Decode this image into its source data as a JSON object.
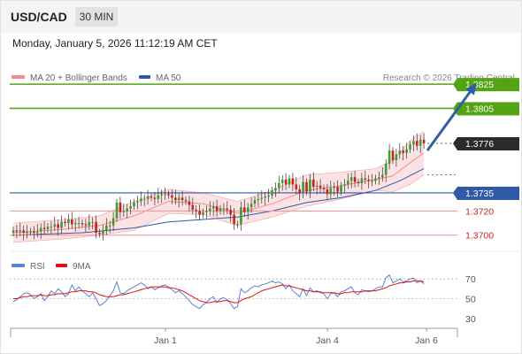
{
  "header": {
    "symbol": "USD/CAD",
    "timeframe": "30 MIN"
  },
  "datetime": "Monday, January 5, 2026 11:12:19 AM CET",
  "legend": [
    {
      "label": "MA 20 + Bollinger Bands",
      "color": "#f28b8b"
    },
    {
      "label": "MA 50",
      "color": "#2e5aa8"
    }
  ],
  "credit": "Research © 2026 Trading Central",
  "colors": {
    "bull": "#3f9c2f",
    "bear": "#cc1f1f",
    "resistance": "#53a313",
    "pivot": "#2e5aa8",
    "support": "#f29b9b",
    "band_fill": "#fbdada",
    "arrow": "#2f5fa6",
    "rsi": "#5b82d6",
    "rsi_ma": "#e01010"
  },
  "chart_data": [
    {
      "type": "candlestick",
      "title": "USD/CAD",
      "ylim": [
        1.368,
        1.385
      ],
      "x_ticks": [
        "Jan 1",
        "Jan 4",
        "Jan 6"
      ],
      "candles": {
        "count": 120,
        "closes": [
          1.3704,
          1.3703,
          1.3704,
          1.3702,
          1.3703,
          1.3703,
          1.3702,
          1.3703,
          1.3706,
          1.3705,
          1.3707,
          1.3707,
          1.3709,
          1.3706,
          1.3711,
          1.371,
          1.3713,
          1.3709,
          1.371,
          1.371,
          1.3709,
          1.3708,
          1.3711,
          1.3711,
          1.3702,
          1.3701,
          1.3704,
          1.3708,
          1.3708,
          1.3714,
          1.3727,
          1.3719,
          1.372,
          1.3722,
          1.3724,
          1.3727,
          1.3728,
          1.373,
          1.373,
          1.3732,
          1.3731,
          1.373,
          1.3733,
          1.3734,
          1.3734,
          1.3733,
          1.3731,
          1.3729,
          1.3731,
          1.3729,
          1.3728,
          1.3725,
          1.3721,
          1.372,
          1.3717,
          1.3719,
          1.372,
          1.3722,
          1.3724,
          1.372,
          1.3722,
          1.3722,
          1.3721,
          1.3717,
          1.3709,
          1.3709,
          1.3723,
          1.3719,
          1.3723,
          1.3726,
          1.3729,
          1.373,
          1.3731,
          1.3732,
          1.3733,
          1.3737,
          1.3739,
          1.3743,
          1.3746,
          1.3742,
          1.3747,
          1.3742,
          1.3738,
          1.3735,
          1.3744,
          1.3736,
          1.3746,
          1.374,
          1.3741,
          1.3739,
          1.3738,
          1.3734,
          1.3739,
          1.374,
          1.3736,
          1.3741,
          1.3742,
          1.3745,
          1.3748,
          1.3744,
          1.3743,
          1.3747,
          1.3746,
          1.3745,
          1.3745,
          1.3747,
          1.3748,
          1.375,
          1.3759,
          1.377,
          1.3762,
          1.3767,
          1.377,
          1.3768,
          1.3771,
          1.3775,
          1.3778,
          1.3774,
          1.3779,
          1.3776
        ],
        "last": 1.3776
      },
      "ma20": {
        "name": "MA 20 + Bollinger Bands",
        "points": [
          [
            0,
            1.3702
          ],
          [
            15,
            1.3705
          ],
          [
            25,
            1.3708
          ],
          [
            35,
            1.3716
          ],
          [
            45,
            1.3728
          ],
          [
            55,
            1.3726
          ],
          [
            65,
            1.3718
          ],
          [
            75,
            1.3726
          ],
          [
            85,
            1.3737
          ],
          [
            95,
            1.3741
          ],
          [
            105,
            1.3746
          ],
          [
            110,
            1.3749
          ],
          [
            115,
            1.376
          ],
          [
            119,
            1.3768
          ]
        ],
        "upper": [
          [
            0,
            1.371
          ],
          [
            15,
            1.3713
          ],
          [
            25,
            1.3716
          ],
          [
            35,
            1.3728
          ],
          [
            45,
            1.3738
          ],
          [
            55,
            1.3735
          ],
          [
            65,
            1.3728
          ],
          [
            75,
            1.3737
          ],
          [
            85,
            1.375
          ],
          [
            95,
            1.3752
          ],
          [
            105,
            1.3755
          ],
          [
            110,
            1.3762
          ],
          [
            115,
            1.3778
          ],
          [
            119,
            1.3786
          ]
        ],
        "lower": [
          [
            0,
            1.3694
          ],
          [
            15,
            1.3697
          ],
          [
            25,
            1.37
          ],
          [
            35,
            1.3704
          ],
          [
            45,
            1.3718
          ],
          [
            55,
            1.3717
          ],
          [
            65,
            1.3708
          ],
          [
            75,
            1.3715
          ],
          [
            85,
            1.3724
          ],
          [
            95,
            1.373
          ],
          [
            105,
            1.3737
          ],
          [
            110,
            1.3736
          ],
          [
            115,
            1.3742
          ],
          [
            119,
            1.375
          ]
        ]
      },
      "ma50": {
        "name": "MA 50",
        "points": [
          [
            0,
            1.37
          ],
          [
            20,
            1.3702
          ],
          [
            35,
            1.3706
          ],
          [
            45,
            1.3711
          ],
          [
            55,
            1.3713
          ],
          [
            65,
            1.3715
          ],
          [
            75,
            1.372
          ],
          [
            85,
            1.3727
          ],
          [
            95,
            1.3731
          ],
          [
            105,
            1.3737
          ],
          [
            112,
            1.3745
          ],
          [
            119,
            1.3755
          ]
        ]
      },
      "levels": [
        {
          "value": 1.3825,
          "label": "1.3825",
          "kind": "resistance"
        },
        {
          "value": 1.3805,
          "label": "1.3805",
          "kind": "resistance"
        },
        {
          "value": 1.3776,
          "label": "1.3776",
          "kind": "last"
        },
        {
          "value": 1.3735,
          "label": "1.3735",
          "kind": "pivot"
        },
        {
          "value": 1.372,
          "label": "1.3720",
          "kind": "support"
        },
        {
          "value": 1.37,
          "label": "1.3700",
          "kind": "support"
        }
      ],
      "arrow": {
        "from": [
          120,
          1.377
        ],
        "to": [
          134,
          1.3825
        ]
      }
    },
    {
      "type": "line",
      "title": "RSI",
      "legend": [
        "RSI",
        "9MA"
      ],
      "ylim": [
        20,
        80
      ],
      "y_ticks": [
        70,
        50,
        30
      ],
      "rsi": [
        47,
        49,
        52,
        55,
        56,
        54,
        50,
        52,
        55,
        48,
        52,
        58,
        55,
        60,
        57,
        52,
        55,
        64,
        58,
        62,
        58,
        55,
        52,
        56,
        50,
        43,
        45,
        48,
        53,
        58,
        67,
        56,
        55,
        58,
        60,
        62,
        64,
        66,
        64,
        60,
        62,
        59,
        61,
        63,
        64,
        62,
        59,
        56,
        58,
        55,
        52,
        48,
        44,
        42,
        40,
        44,
        46,
        50,
        52,
        46,
        50,
        51,
        49,
        45,
        40,
        42,
        60,
        56,
        58,
        61,
        63,
        62,
        64,
        65,
        66,
        68,
        66,
        67,
        65,
        60,
        64,
        58,
        55,
        52,
        60,
        53,
        61,
        57,
        58,
        56,
        55,
        50,
        55,
        56,
        52,
        57,
        58,
        60,
        62,
        56,
        54,
        59,
        58,
        57,
        58,
        60,
        62,
        62,
        71,
        74,
        66,
        68,
        70,
        67,
        68,
        70,
        71,
        66,
        68,
        65
      ],
      "rsi_ma": [
        50,
        50,
        51,
        52,
        52,
        53,
        53,
        53,
        54,
        53,
        53,
        54,
        54,
        55,
        55,
        55,
        56,
        57,
        57,
        58,
        58,
        58,
        57,
        57,
        56,
        54,
        53,
        52,
        52,
        52,
        53,
        54,
        54,
        55,
        56,
        57,
        58,
        59,
        60,
        61,
        62,
        62,
        62,
        62,
        62,
        61,
        61,
        60,
        59,
        58,
        56,
        54,
        52,
        50,
        48,
        47,
        46,
        46,
        47,
        47,
        47,
        48,
        48,
        47,
        46,
        46,
        48,
        50,
        51,
        52,
        54,
        56,
        58,
        59,
        60,
        61,
        62,
        63,
        64,
        63,
        63,
        62,
        61,
        60,
        59,
        58,
        58,
        57,
        57,
        57,
        56,
        56,
        56,
        56,
        55,
        55,
        56,
        56,
        57,
        57,
        57,
        57,
        58,
        58,
        58,
        58,
        59,
        60,
        61,
        63,
        64,
        65,
        66,
        66,
        67,
        67,
        68,
        68,
        68,
        67
      ]
    }
  ]
}
